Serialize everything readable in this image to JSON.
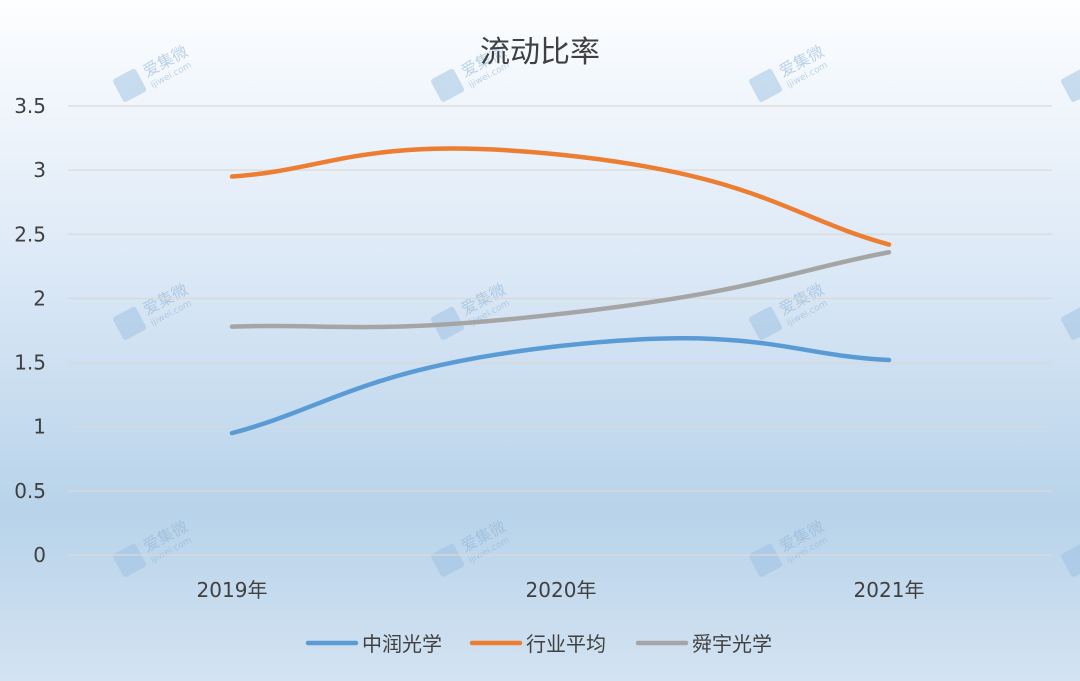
{
  "chart_data": {
    "type": "line",
    "title": "流动比率",
    "categories": [
      "2019年",
      "2020年",
      "2021年"
    ],
    "ylim": [
      0,
      3.5
    ],
    "yticks": [
      "0",
      "0.5",
      "1",
      "1.5",
      "2",
      "2.5",
      "3",
      "3.5"
    ],
    "grid": true,
    "smooth": true,
    "legend_position": "bottom",
    "series": [
      {
        "name": "中润光学",
        "values": [
          0.95,
          1.63,
          1.52
        ],
        "color": "#5b9bd5"
      },
      {
        "name": "行业平均",
        "values": [
          2.95,
          3.12,
          2.42
        ],
        "color": "#ed7d31"
      },
      {
        "name": "舜宇光学",
        "values": [
          1.78,
          1.88,
          2.36
        ],
        "color": "#a5a5a5"
      }
    ]
  },
  "watermark": {
    "brand": "爱集微",
    "domain": "ijiwei.com",
    "icon": "ijiwei-logo-icon"
  }
}
